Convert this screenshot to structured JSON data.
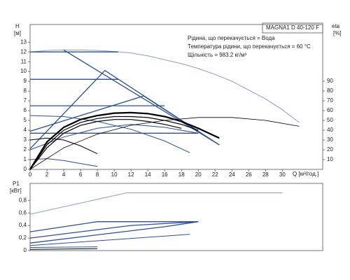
{
  "chart_data": [
    {
      "type": "line",
      "title": "MAGNA1 D 40-120 F",
      "annotations": [
        "Рідина, що перекачується = Вода",
        "Температура рідини, що перекачується = 60 °C",
        "Щільність = 983.2 кг/м³"
      ],
      "y_label": "H",
      "y_unit": "[м]",
      "y2_label": "eta",
      "y2_unit": "[%]",
      "x_label": "Q [м³/год.]",
      "xlim": [
        0,
        34.8
      ],
      "xticks": [
        0,
        2,
        4,
        6,
        8,
        10,
        12,
        14,
        16,
        18,
        20,
        22,
        24,
        26,
        28,
        30
      ],
      "ylim": [
        0,
        14.8
      ],
      "yticks": [
        0,
        1,
        2,
        3,
        4,
        5,
        6,
        7,
        8,
        9,
        10,
        11,
        12,
        13
      ],
      "y2lim": [
        0,
        147.9
      ],
      "y2ticks": [
        10,
        20,
        30,
        40,
        50,
        60,
        70,
        80,
        90
      ],
      "series": [
        {
          "color": "#8da0c8",
          "width": 1,
          "x": [
            0,
            2,
            4,
            6,
            8,
            10,
            12,
            14,
            16,
            18,
            20,
            22,
            24,
            26,
            28,
            30,
            32
          ],
          "values": [
            12,
            12.15,
            12.2,
            12.2,
            12.15,
            12.05,
            11.9,
            11.6,
            11.2,
            10.8,
            10.3,
            9.7,
            9.0,
            8.1,
            7.2,
            6.1,
            4.8
          ]
        },
        {
          "color": "#2f4f8f",
          "width": 1.3,
          "x": [
            0,
            10.5
          ],
          "values": [
            12,
            12
          ]
        },
        {
          "color": "#2f4f8f",
          "width": 1.3,
          "x": [
            0,
            10.5
          ],
          "values": [
            9.2,
            9.2
          ]
        },
        {
          "color": "#2f4f8f",
          "width": 1.3,
          "x": [
            0,
            16
          ],
          "values": [
            6.5,
            6.5
          ]
        },
        {
          "color": "#2f4f8f",
          "width": 1.3,
          "x": [
            0,
            20
          ],
          "values": [
            3.7,
            3.7
          ]
        },
        {
          "color": "#2f4f8f",
          "width": 1.3,
          "x": [
            0,
            8.9,
            22.5
          ],
          "values": [
            2.1,
            10.1,
            2.5
          ]
        },
        {
          "color": "#2f4f8f",
          "width": 1.3,
          "x": [
            0,
            13.5,
            22.5
          ],
          "values": [
            3.9,
            7.5,
            2.5
          ]
        },
        {
          "color": "#2f4f8f",
          "width": 1.3,
          "x": [
            4,
            8,
            22.5
          ],
          "values": [
            12.2,
            10.1,
            2.5
          ]
        },
        {
          "color": "#2f4f8f",
          "width": 1,
          "x": [
            0,
            4,
            8,
            12,
            16,
            19
          ],
          "values": [
            5.5,
            5.4,
            4.9,
            4.1,
            2.9,
            1.7
          ]
        },
        {
          "color": "#2f4f8f",
          "width": 1,
          "x": [
            0,
            4,
            8,
            12,
            16,
            20
          ],
          "values": [
            2,
            3.3,
            4.2,
            4.6,
            4.3,
            3.7
          ]
        },
        {
          "color": "#2f4f8f",
          "width": 1,
          "x": [
            0,
            2,
            4,
            6,
            8
          ],
          "values": [
            1,
            1.1,
            0.9,
            0.6,
            0.3
          ]
        },
        {
          "color": "#000000",
          "width": 1,
          "x": [
            0,
            2,
            4,
            6,
            8
          ],
          "values": [
            3,
            3.2,
            3,
            2.4,
            1.6
          ]
        },
        {
          "color": "#000000",
          "width": 2.2,
          "x": [
            0,
            2,
            4,
            6,
            8,
            10,
            12,
            14,
            16,
            18,
            20,
            22.5
          ],
          "values": [
            0,
            2.8,
            4.3,
            5.1,
            5.5,
            5.75,
            5.8,
            5.7,
            5.4,
            4.9,
            4.2,
            3.2
          ]
        },
        {
          "color": "#000000",
          "width": 1.2,
          "x": [
            0,
            2,
            4,
            6,
            8,
            10,
            12,
            14,
            16,
            18,
            20
          ],
          "values": [
            0,
            2.5,
            4.0,
            4.8,
            5.2,
            5.4,
            5.4,
            5.3,
            5.0,
            4.6,
            4.0
          ]
        },
        {
          "color": "#000000",
          "width": 1.2,
          "x": [
            0,
            2,
            4,
            6,
            8,
            10,
            12,
            14,
            16,
            18
          ],
          "values": [
            0,
            2.2,
            3.7,
            4.5,
            4.9,
            5.1,
            5.1,
            4.9,
            4.6,
            4.2
          ]
        },
        {
          "color": "#000000",
          "width": 0.8,
          "axis": "y2",
          "x": [
            0,
            4,
            8,
            12,
            16,
            20,
            24,
            28,
            32
          ],
          "values": [
            0,
            22,
            36,
            45,
            50,
            53,
            53,
            50,
            44
          ]
        }
      ]
    },
    {
      "type": "line",
      "y_label": "P1",
      "y_unit": "[кВт]",
      "xlim": [
        0,
        34.8
      ],
      "ylim": [
        0,
        1.07
      ],
      "yticks": [
        0,
        {
          "value": 0.2,
          "label": "0,2"
        },
        {
          "value": 0.4,
          "label": "0,4"
        },
        {
          "value": 0.6,
          "label": "0,6"
        },
        {
          "value": 0.8,
          "label": "0,8"
        }
      ],
      "series": [
        {
          "color": "#8da0c8",
          "width": 1,
          "x": [
            0,
            11.5,
            30
          ],
          "values": [
            0.58,
            0.92,
            0.92
          ]
        },
        {
          "color": "#2f4f8f",
          "width": 1.3,
          "x": [
            0,
            8,
            20
          ],
          "values": [
            0.3,
            0.46,
            0.46
          ]
        },
        {
          "color": "#2f4f8f",
          "width": 1.3,
          "x": [
            0,
            12,
            20
          ],
          "values": [
            0.2,
            0.4,
            0.46
          ]
        },
        {
          "color": "#2f4f8f",
          "width": 1.3,
          "x": [
            0,
            16,
            20
          ],
          "values": [
            0.12,
            0.38,
            0.46
          ]
        },
        {
          "color": "#2f4f8f",
          "width": 1,
          "x": [
            0,
            19
          ],
          "values": [
            0.08,
            0.26
          ]
        },
        {
          "color": "#2f4f8f",
          "width": 1,
          "x": [
            0,
            8
          ],
          "values": [
            0.05,
            0.06
          ]
        },
        {
          "color": "#000000",
          "width": 1,
          "x": [
            0,
            8
          ],
          "values": [
            0.02,
            0.03
          ]
        }
      ]
    }
  ]
}
